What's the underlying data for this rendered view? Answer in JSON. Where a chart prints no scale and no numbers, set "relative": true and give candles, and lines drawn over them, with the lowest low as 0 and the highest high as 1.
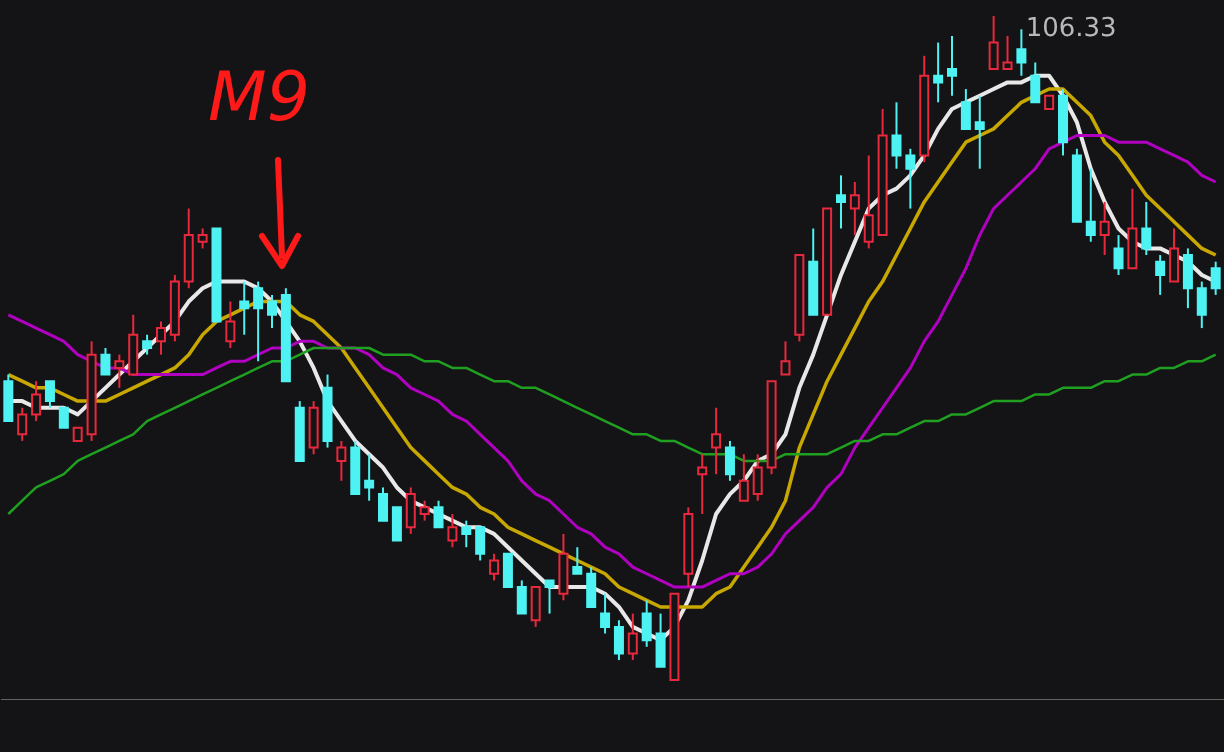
{
  "chart_data": {
    "type": "candlestick",
    "relative": true,
    "categories": [
      null,
      null,
      null,
      null,
      null,
      null,
      null,
      null,
      null,
      null,
      null,
      null,
      null,
      null,
      null,
      null,
      null,
      null,
      null,
      null,
      null,
      null,
      null,
      null,
      null,
      null,
      null,
      null,
      null,
      null,
      null,
      null,
      null,
      null,
      null,
      null,
      null,
      null,
      null,
      null,
      null,
      null,
      null,
      null,
      null,
      null,
      null,
      null,
      null,
      null,
      null,
      null,
      null,
      null,
      null,
      null,
      null,
      null,
      null,
      null,
      null,
      null,
      null,
      null,
      null,
      null,
      null,
      null,
      null,
      null,
      null,
      null,
      null,
      null,
      null,
      null,
      null,
      null,
      null,
      null,
      null,
      null,
      null,
      null,
      null,
      null,
      null,
      null
    ],
    "ohlc": [
      [
        0.45,
        0.46,
        0.39,
        0.39
      ],
      [
        0.37,
        0.41,
        0.36,
        0.4
      ],
      [
        0.4,
        0.45,
        0.39,
        0.43
      ],
      [
        0.45,
        0.45,
        0.41,
        0.42
      ],
      [
        0.41,
        0.41,
        0.38,
        0.38
      ],
      [
        0.36,
        0.38,
        0.36,
        0.38
      ],
      [
        0.37,
        0.51,
        0.36,
        0.49
      ],
      [
        0.49,
        0.5,
        0.46,
        0.46
      ],
      [
        0.47,
        0.49,
        0.44,
        0.48
      ],
      [
        0.46,
        0.55,
        0.46,
        0.52
      ],
      [
        0.51,
        0.52,
        0.49,
        0.5
      ],
      [
        0.51,
        0.54,
        0.49,
        0.53
      ],
      [
        0.52,
        0.61,
        0.51,
        0.6
      ],
      [
        0.6,
        0.71,
        0.59,
        0.67
      ],
      [
        0.66,
        0.68,
        0.65,
        0.67
      ],
      [
        0.68,
        0.68,
        0.54,
        0.54
      ],
      [
        0.51,
        0.57,
        0.5,
        0.54
      ],
      [
        0.57,
        0.6,
        0.52,
        0.56
      ],
      [
        0.59,
        0.6,
        0.48,
        0.56
      ],
      [
        0.57,
        0.58,
        0.53,
        0.55
      ],
      [
        0.58,
        0.59,
        0.45,
        0.45
      ],
      [
        0.41,
        0.42,
        0.33,
        0.33
      ],
      [
        0.35,
        0.42,
        0.34,
        0.41
      ],
      [
        0.44,
        0.46,
        0.35,
        0.36
      ],
      [
        0.33,
        0.36,
        0.3,
        0.35
      ],
      [
        0.35,
        0.36,
        0.28,
        0.28
      ],
      [
        0.3,
        0.34,
        0.27,
        0.29
      ],
      [
        0.28,
        0.29,
        0.24,
        0.24
      ],
      [
        0.26,
        0.26,
        0.21,
        0.21
      ],
      [
        0.23,
        0.29,
        0.22,
        0.28
      ],
      [
        0.25,
        0.27,
        0.24,
        0.26
      ],
      [
        0.26,
        0.27,
        0.23,
        0.23
      ],
      [
        0.21,
        0.25,
        0.2,
        0.23
      ],
      [
        0.23,
        0.24,
        0.2,
        0.22
      ],
      [
        0.23,
        0.23,
        0.18,
        0.19
      ],
      [
        0.16,
        0.19,
        0.15,
        0.18
      ],
      [
        0.19,
        0.19,
        0.14,
        0.14
      ],
      [
        0.14,
        0.15,
        0.1,
        0.1
      ],
      [
        0.09,
        0.14,
        0.08,
        0.14
      ],
      [
        0.15,
        0.15,
        0.1,
        0.14
      ],
      [
        0.13,
        0.22,
        0.12,
        0.19
      ],
      [
        0.17,
        0.2,
        0.16,
        0.16
      ],
      [
        0.16,
        0.17,
        0.11,
        0.11
      ],
      [
        0.1,
        0.13,
        0.07,
        0.08
      ],
      [
        0.08,
        0.09,
        0.03,
        0.04
      ],
      [
        0.04,
        0.1,
        0.03,
        0.07
      ],
      [
        0.1,
        0.12,
        0.05,
        0.06
      ],
      [
        0.07,
        0.1,
        0.02,
        0.02
      ],
      [
        0,
        0.13,
        0,
        0.13
      ],
      [
        0.16,
        0.26,
        0.14,
        0.25
      ],
      [
        0.31,
        0.34,
        0.25,
        0.32
      ],
      [
        0.35,
        0.41,
        0.31,
        0.37
      ],
      [
        0.35,
        0.36,
        0.3,
        0.31
      ],
      [
        0.27,
        0.34,
        0.27,
        0.3
      ],
      [
        0.28,
        0.34,
        0.27,
        0.32
      ],
      [
        0.32,
        0.45,
        0.31,
        0.45
      ],
      [
        0.46,
        0.51,
        0.46,
        0.48
      ],
      [
        0.52,
        0.64,
        0.51,
        0.64
      ],
      [
        0.63,
        0.68,
        0.55,
        0.55
      ],
      [
        0.55,
        0.71,
        0.55,
        0.71
      ],
      [
        0.73,
        0.76,
        0.68,
        0.72
      ],
      [
        0.71,
        0.75,
        0.67,
        0.73
      ],
      [
        0.66,
        0.79,
        0.65,
        0.7
      ],
      [
        0.67,
        0.86,
        0.67,
        0.82
      ],
      [
        0.82,
        0.87,
        0.77,
        0.79
      ],
      [
        0.79,
        0.8,
        0.71,
        0.77
      ],
      [
        0.79,
        0.94,
        0.78,
        0.91
      ],
      [
        0.91,
        0.96,
        0.87,
        0.9
      ],
      [
        0.92,
        0.97,
        0.88,
        0.91
      ],
      [
        0.87,
        0.89,
        0.83,
        0.83
      ],
      [
        0.84,
        0.88,
        0.77,
        0.83
      ],
      [
        0.92,
        1,
        0.92,
        0.96
      ],
      [
        0.92,
        0.97,
        0.92,
        0.93
      ],
      [
        0.95,
        0.98,
        0.91,
        0.93
      ],
      [
        0.91,
        0.93,
        0.87,
        0.87
      ],
      [
        0.86,
        0.88,
        0.86,
        0.88
      ],
      [
        0.88,
        0.89,
        0.79,
        0.81
      ],
      [
        0.79,
        0.8,
        0.69,
        0.69
      ],
      [
        0.69,
        0.77,
        0.66,
        0.67
      ],
      [
        0.67,
        0.72,
        0.64,
        0.69
      ],
      [
        0.65,
        0.67,
        0.61,
        0.62
      ],
      [
        0.62,
        0.74,
        0.62,
        0.68
      ],
      [
        0.68,
        0.72,
        0.64,
        0.65
      ],
      [
        0.63,
        0.64,
        0.58,
        0.61
      ],
      [
        0.6,
        0.68,
        0.6,
        0.65
      ],
      [
        0.64,
        0.65,
        0.56,
        0.59
      ],
      [
        0.59,
        0.6,
        0.53,
        0.55
      ],
      [
        0.62,
        0.63,
        0.58,
        0.59
      ]
    ],
    "series": [
      {
        "type": "line",
        "color": "#e8e8e8",
        "values": [
          0.42,
          0.42,
          0.41,
          0.41,
          0.41,
          0.4,
          0.42,
          0.44,
          0.46,
          0.48,
          0.5,
          0.52,
          0.54,
          0.57,
          0.59,
          0.6,
          0.6,
          0.6,
          0.59,
          0.57,
          0.54,
          0.51,
          0.47,
          0.42,
          0.39,
          0.36,
          0.34,
          0.32,
          0.29,
          0.27,
          0.26,
          0.25,
          0.24,
          0.23,
          0.23,
          0.22,
          0.2,
          0.18,
          0.16,
          0.14,
          0.14,
          0.14,
          0.14,
          0.13,
          0.11,
          0.08,
          0.07,
          0.06,
          0.08,
          0.12,
          0.18,
          0.25,
          0.28,
          0.3,
          0.33,
          0.34,
          0.37,
          0.44,
          0.49,
          0.55,
          0.61,
          0.66,
          0.71,
          0.73,
          0.74,
          0.76,
          0.79,
          0.83,
          0.86,
          0.87,
          0.88,
          0.89,
          0.9,
          0.9,
          0.91,
          0.91,
          0.88,
          0.84,
          0.77,
          0.72,
          0.68,
          0.66,
          0.65,
          0.65,
          0.64,
          0.63,
          0.61,
          0.6
        ]
      },
      {
        "type": "line",
        "color": "#c8a800",
        "values": [
          0.46,
          0.45,
          0.44,
          0.44,
          0.43,
          0.42,
          0.42,
          0.42,
          0.43,
          0.44,
          0.45,
          0.46,
          0.47,
          0.49,
          0.52,
          0.54,
          0.55,
          0.56,
          0.57,
          0.57,
          0.57,
          0.55,
          0.54,
          0.52,
          0.5,
          0.47,
          0.44,
          0.41,
          0.38,
          0.35,
          0.33,
          0.31,
          0.29,
          0.28,
          0.26,
          0.25,
          0.23,
          0.22,
          0.21,
          0.2,
          0.19,
          0.18,
          0.17,
          0.16,
          0.14,
          0.13,
          0.12,
          0.11,
          0.11,
          0.11,
          0.11,
          0.13,
          0.14,
          0.17,
          0.2,
          0.23,
          0.27,
          0.35,
          0.4,
          0.45,
          0.49,
          0.53,
          0.57,
          0.6,
          0.64,
          0.68,
          0.72,
          0.75,
          0.78,
          0.81,
          0.82,
          0.83,
          0.85,
          0.87,
          0.88,
          0.89,
          0.89,
          0.87,
          0.85,
          0.81,
          0.79,
          0.76,
          0.73,
          0.71,
          0.69,
          0.67,
          0.65,
          0.64
        ]
      },
      {
        "type": "line",
        "color": "#b000c0",
        "values": [
          0.55,
          0.54,
          0.53,
          0.52,
          0.51,
          0.49,
          0.48,
          0.47,
          0.47,
          0.46,
          0.46,
          0.46,
          0.46,
          0.46,
          0.46,
          0.47,
          0.48,
          0.48,
          0.49,
          0.5,
          0.5,
          0.51,
          0.51,
          0.5,
          0.5,
          0.5,
          0.49,
          0.47,
          0.46,
          0.44,
          0.43,
          0.42,
          0.4,
          0.39,
          0.37,
          0.35,
          0.33,
          0.3,
          0.28,
          0.27,
          0.25,
          0.23,
          0.22,
          0.2,
          0.19,
          0.17,
          0.16,
          0.15,
          0.14,
          0.14,
          0.14,
          0.15,
          0.16,
          0.16,
          0.17,
          0.19,
          0.22,
          0.24,
          0.26,
          0.29,
          0.31,
          0.35,
          0.38,
          0.41,
          0.44,
          0.47,
          0.51,
          0.54,
          0.58,
          0.62,
          0.67,
          0.71,
          0.73,
          0.75,
          0.77,
          0.8,
          0.81,
          0.82,
          0.82,
          0.82,
          0.81,
          0.81,
          0.81,
          0.8,
          0.79,
          0.78,
          0.76,
          0.75
        ]
      },
      {
        "type": "line",
        "color": "#20a020",
        "values": [
          0.25,
          0.27,
          0.29,
          0.3,
          0.31,
          0.33,
          0.34,
          0.35,
          0.36,
          0.37,
          0.39,
          0.4,
          0.41,
          0.42,
          0.43,
          0.44,
          0.45,
          0.46,
          0.47,
          0.48,
          0.48,
          0.49,
          0.5,
          0.5,
          0.5,
          0.5,
          0.5,
          0.49,
          0.49,
          0.49,
          0.48,
          0.48,
          0.47,
          0.47,
          0.46,
          0.45,
          0.45,
          0.44,
          0.44,
          0.43,
          0.42,
          0.41,
          0.4,
          0.39,
          0.38,
          0.37,
          0.37,
          0.36,
          0.36,
          0.35,
          0.34,
          0.34,
          0.34,
          0.33,
          0.33,
          0.33,
          0.34,
          0.34,
          0.34,
          0.34,
          0.35,
          0.36,
          0.36,
          0.37,
          0.37,
          0.38,
          0.39,
          0.39,
          0.4,
          0.4,
          0.41,
          0.42,
          0.42,
          0.42,
          0.43,
          0.43,
          0.44,
          0.44,
          0.44,
          0.45,
          0.45,
          0.46,
          0.46,
          0.47,
          0.47,
          0.48,
          0.48,
          0.49
        ]
      }
    ],
    "annotations": [
      "M9",
      "106.33"
    ]
  }
}
